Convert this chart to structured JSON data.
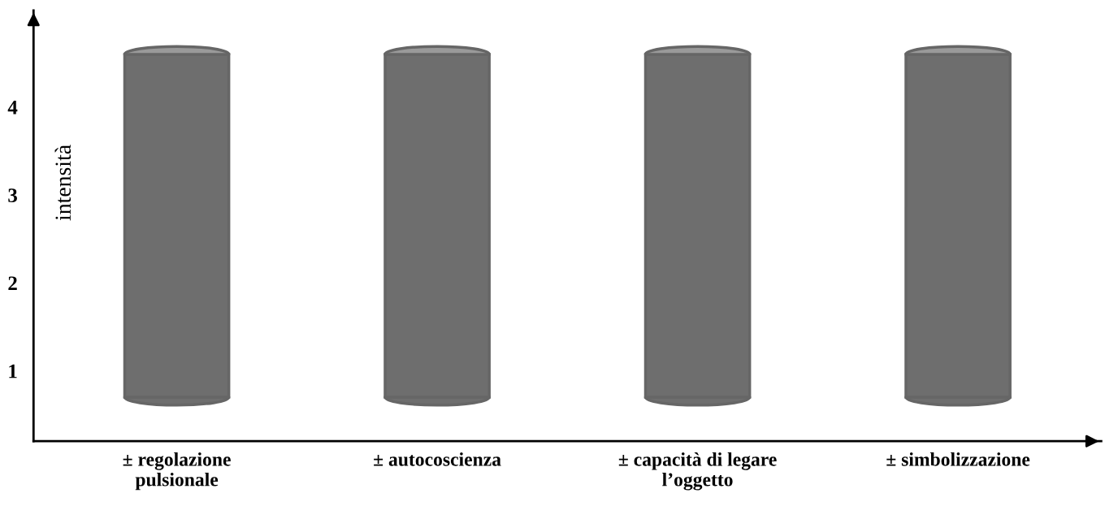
{
  "chart_data": {
    "type": "bar",
    "ylabel": "intensità",
    "categories": [
      "± regolazione\npulsionale",
      "± autocoscienza",
      "± capacità di legare\nl’oggetto",
      "± simbolizzazione"
    ],
    "values": [
      3.9,
      3.9,
      3.9,
      3.9
    ],
    "base": [
      0.7,
      0.7,
      0.7,
      0.7
    ],
    "color": "#6e6e6e",
    "ylim": [
      0.2,
      5.1
    ],
    "yticks": [
      1,
      2,
      3,
      4
    ],
    "grid": false,
    "legend": false
  }
}
